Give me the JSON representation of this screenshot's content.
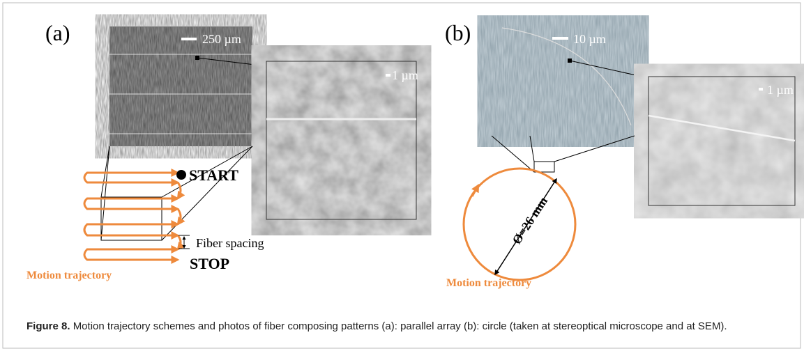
{
  "figure": {
    "panel_a": {
      "label": "(a)",
      "scale_optical": "250 µm",
      "scale_sem": "1 µm",
      "start": "START",
      "spacing": "Fiber spacing",
      "stop": "STOP",
      "trajectory": "Motion trajectory"
    },
    "panel_b": {
      "label": "(b)",
      "scale_optical": "10 µm",
      "scale_sem": "1 µm",
      "diameter": "Ø=26 mm",
      "trajectory": "Motion trajectory"
    },
    "caption": {
      "label": "Figure 8.",
      "text": "Motion trajectory schemes and photos of fiber composing patterns (a): parallel array (b): circle (taken at stereoptical microscope and at SEM)."
    }
  }
}
